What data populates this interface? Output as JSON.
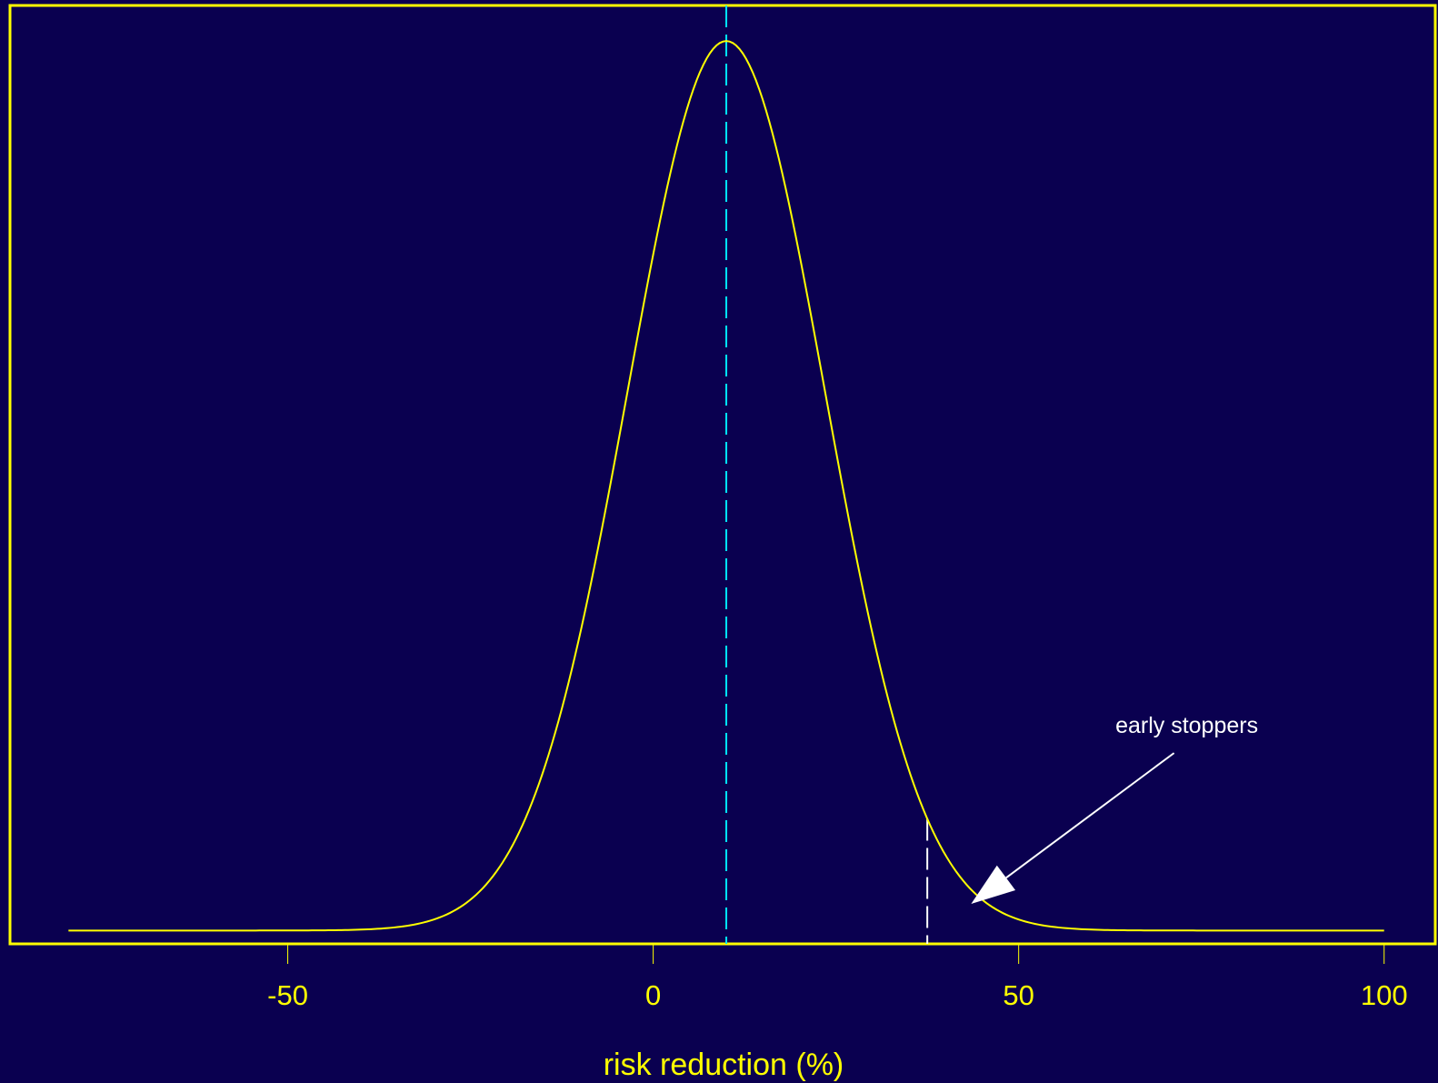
{
  "chart_data": {
    "type": "line",
    "title": "",
    "xlabel": "risk reduction (%)",
    "ylabel": "",
    "xlim": [
      -88,
      107
    ],
    "ylim": [
      -0.015,
      1.04
    ],
    "xticks": [
      -50,
      0,
      50,
      100
    ],
    "xtick_labels": [
      "-50",
      "0",
      "50",
      "100"
    ],
    "grid": false,
    "legend": "none",
    "series": [
      {
        "line_type": "normal-density",
        "mean": 10,
        "sd": 13.5,
        "x_start": -80,
        "x_end": 100,
        "peak_value": 1.0,
        "color": "#ffff00"
      }
    ],
    "reference_lines": [
      {
        "x": 10,
        "style": "dashed",
        "color": "#00e5ff",
        "span": "full-height"
      },
      {
        "x": 37.5,
        "style": "dashed",
        "color": "#ffffff",
        "span": "to-curve"
      }
    ],
    "annotations": [
      {
        "text": "early stoppers",
        "text_at": [
          73,
          0.22
        ],
        "arrow_to": [
          43.5,
          0.03
        ],
        "color": "#ffffff"
      }
    ],
    "colors": {
      "background": "#0a0050",
      "axis": "#ffff00",
      "curve": "#ffff00",
      "mean_line": "#00e5ff",
      "cutoff_line": "#ffffff",
      "annotation": "#ffffff"
    }
  }
}
